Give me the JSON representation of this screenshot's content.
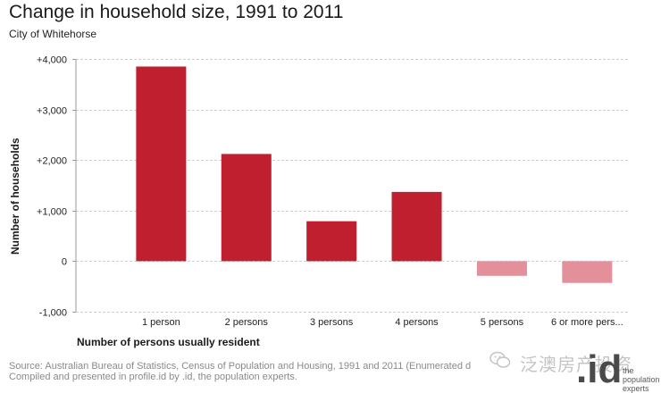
{
  "chart_data": {
    "type": "bar",
    "title": "Change in household size, 1991 to 2011",
    "subtitle": "City of Whitehorse",
    "xlabel": "Number of persons usually resident",
    "ylabel": "Number of households",
    "categories": [
      "1 person",
      "2 persons",
      "3 persons",
      "4 persons",
      "5 persons",
      "6 or more pers..."
    ],
    "values": [
      3850,
      2120,
      790,
      1370,
      -290,
      -430
    ],
    "ylim": [
      -1000,
      4000
    ],
    "yticks": [
      4000,
      3000,
      2000,
      1000,
      0,
      -1000
    ],
    "ytick_labels": [
      "+4,000",
      "+3,000",
      "+2,000",
      "+1,000",
      "0",
      "-1,000"
    ],
    "grid": true,
    "positive_color": "#c01f2f",
    "negative_color": "#e3909a"
  },
  "source": {
    "line1": "Source: Australian Bureau of Statistics, Census of Population and Housing, 1991 and 2011 (Enumerated d",
    "line2": "Compiled and presented in profile.id by .id, the population experts."
  },
  "watermark": {
    "text": "泛澳房产投资"
  },
  "logo": {
    "mark": ".id",
    "tagline": [
      "the",
      "population",
      "experts"
    ]
  }
}
